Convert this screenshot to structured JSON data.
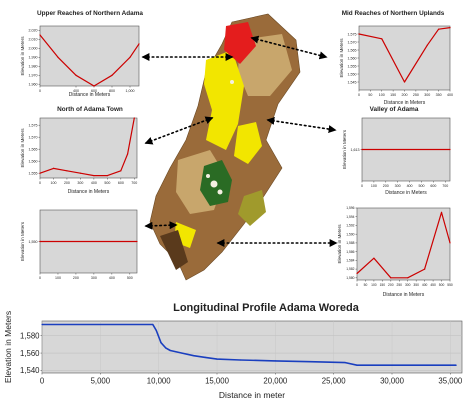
{
  "colors": {
    "line": "#cc0000",
    "profile": "#1a3fbf",
    "plot_bg": "#d7d7d7",
    "arrow": "#000000",
    "map_brown": "#9a6b3a",
    "map_tan": "#c8a66c",
    "map_yellow": "#f2e600",
    "map_red": "#e41d1d",
    "map_green": "#2a6b24",
    "map_olive": "#a09a2c"
  },
  "map_legend_hidden": true,
  "chart_data": [
    {
      "type": "line",
      "title": "Upper Reaches of Northern Adama",
      "xlabel": "Distance in Meters",
      "ylabel": "Elevation in Meters",
      "x": [
        0,
        200,
        400,
        600,
        800,
        1000,
        1100
      ],
      "y": [
        2015,
        1990,
        1970,
        1958,
        1970,
        1990,
        2005
      ],
      "xlim": [
        0,
        1100
      ],
      "ylim": [
        1958,
        2025
      ],
      "xticks": [
        "0",
        "400",
        "600",
        "800",
        "1,000"
      ],
      "xtick_values": [
        0,
        400,
        600,
        800,
        1000
      ],
      "yticks": [
        "1,960",
        "1,970",
        "1,980",
        "1,990",
        "2,000",
        "2,010",
        "2,020"
      ],
      "ytick_values": [
        1960,
        1970,
        1980,
        1990,
        2000,
        2010,
        2020
      ]
    },
    {
      "type": "line",
      "title": "Mid Reaches of Northern Uplands",
      "xlabel": "Distance in Meters",
      "ylabel": "Elevation in Meters",
      "x": [
        0,
        100,
        200,
        300,
        350,
        400
      ],
      "y": [
        1575,
        1572,
        1545,
        1568,
        1578,
        1579
      ],
      "xlim": [
        0,
        400
      ],
      "ylim": [
        1540,
        1580
      ],
      "xticks": [
        "0",
        "50",
        "100",
        "150",
        "200",
        "250",
        "300",
        "350",
        "400"
      ],
      "xtick_values": [
        0,
        50,
        100,
        150,
        200,
        250,
        300,
        350,
        400
      ],
      "yticks": [
        "1,545",
        "1,550",
        "1,555",
        "1,560",
        "1,565",
        "1,570",
        "1,575"
      ],
      "ytick_values": [
        1545,
        1550,
        1555,
        1560,
        1565,
        1570,
        1575
      ]
    },
    {
      "type": "line",
      "title": "North of Adama Town",
      "xlabel": "Distance in Meters",
      "ylabel": "Elevation in Meters",
      "x": [
        0,
        100,
        200,
        300,
        400,
        500,
        600,
        650,
        700
      ],
      "y": [
        1555,
        1557,
        1556,
        1555,
        1554,
        1554,
        1556,
        1563,
        1578
      ],
      "xlim": [
        0,
        720
      ],
      "ylim": [
        1553,
        1578
      ],
      "xticks": [
        "0",
        "100",
        "200",
        "300",
        "400",
        "500",
        "600",
        "700"
      ],
      "xtick_values": [
        0,
        100,
        200,
        300,
        400,
        500,
        600,
        700
      ],
      "yticks": [
        "1,555",
        "1,560",
        "1,565",
        "1,570",
        "1,575"
      ],
      "ytick_values": [
        1555,
        1560,
        1565,
        1570,
        1575
      ]
    },
    {
      "type": "line",
      "title": "Valley of Adama",
      "xlabel": "Distance in Meters",
      "ylabel": "Elevation in Meters",
      "x": [
        0,
        740
      ],
      "y": [
        1613,
        1613
      ],
      "xlim": [
        0,
        740
      ],
      "ylim": [
        1608,
        1618
      ],
      "xticks": [
        "0",
        "100",
        "200",
        "300",
        "400",
        "500",
        "600",
        "700"
      ],
      "xtick_values": [
        0,
        100,
        200,
        300,
        400,
        500,
        600,
        700
      ],
      "yticks": [
        "1,613"
      ],
      "ytick_values": [
        1613
      ]
    },
    {
      "type": "line",
      "title": "",
      "xlabel": "",
      "ylabel": "Elevation in Meters",
      "x": [
        0,
        540
      ],
      "y": [
        1550,
        1550
      ],
      "xlim": [
        0,
        540
      ],
      "ylim": [
        1545,
        1555
      ],
      "xticks": [
        "0",
        "100",
        "200",
        "300",
        "400",
        "500"
      ],
      "xtick_values": [
        0,
        100,
        200,
        300,
        400,
        500
      ],
      "yticks": [
        "1,550"
      ],
      "ytick_values": [
        1550
      ]
    },
    {
      "type": "line",
      "title": "",
      "xlabel": "Distance in Meters",
      "ylabel": "Elevation in Meters",
      "x": [
        0,
        100,
        200,
        300,
        400,
        500,
        550
      ],
      "y": [
        1581,
        1584.5,
        1580,
        1580,
        1582,
        1595,
        1588
      ],
      "xlim": [
        0,
        550
      ],
      "ylim": [
        1579.5,
        1596
      ],
      "xticks": [
        "0",
        "50",
        "100",
        "150",
        "200",
        "250",
        "300",
        "350",
        "400",
        "450",
        "500",
        "550"
      ],
      "xtick_values": [
        0,
        50,
        100,
        150,
        200,
        250,
        300,
        350,
        400,
        450,
        500,
        550
      ],
      "yticks": [
        "1,580",
        "1,582",
        "1,584",
        "1,586",
        "1,588",
        "1,590",
        "1,592",
        "1,594",
        "1,596"
      ],
      "ytick_values": [
        1580,
        1582,
        1584,
        1586,
        1588,
        1590,
        1592,
        1594,
        1596
      ]
    },
    {
      "type": "line",
      "title": "Longitudinal Profile Adama Woreda",
      "xlabel": "Distance in meter",
      "ylabel": "Elevation in Meters",
      "x": [
        0,
        9500,
        9800,
        10200,
        10600,
        11000,
        12000,
        13000,
        14000,
        15000,
        17000,
        20000,
        23000,
        26000,
        27000,
        30000,
        33000,
        35500
      ],
      "y": [
        1593,
        1593,
        1586,
        1572,
        1566,
        1563,
        1560,
        1557,
        1555,
        1553,
        1552,
        1551,
        1550,
        1549,
        1546,
        1546,
        1546,
        1546
      ],
      "xlim": [
        0,
        36000
      ],
      "ylim": [
        1537,
        1597
      ],
      "xticks": [
        "0",
        "5,000",
        "10,000",
        "15,000",
        "20,000",
        "25,000",
        "30,000",
        "35,000"
      ],
      "xtick_values": [
        0,
        5000,
        10000,
        15000,
        20000,
        25000,
        30000,
        35000
      ],
      "yticks": [
        "1,540",
        "1,560",
        "1,580"
      ],
      "ytick_values": [
        1540,
        1560,
        1580
      ]
    }
  ]
}
